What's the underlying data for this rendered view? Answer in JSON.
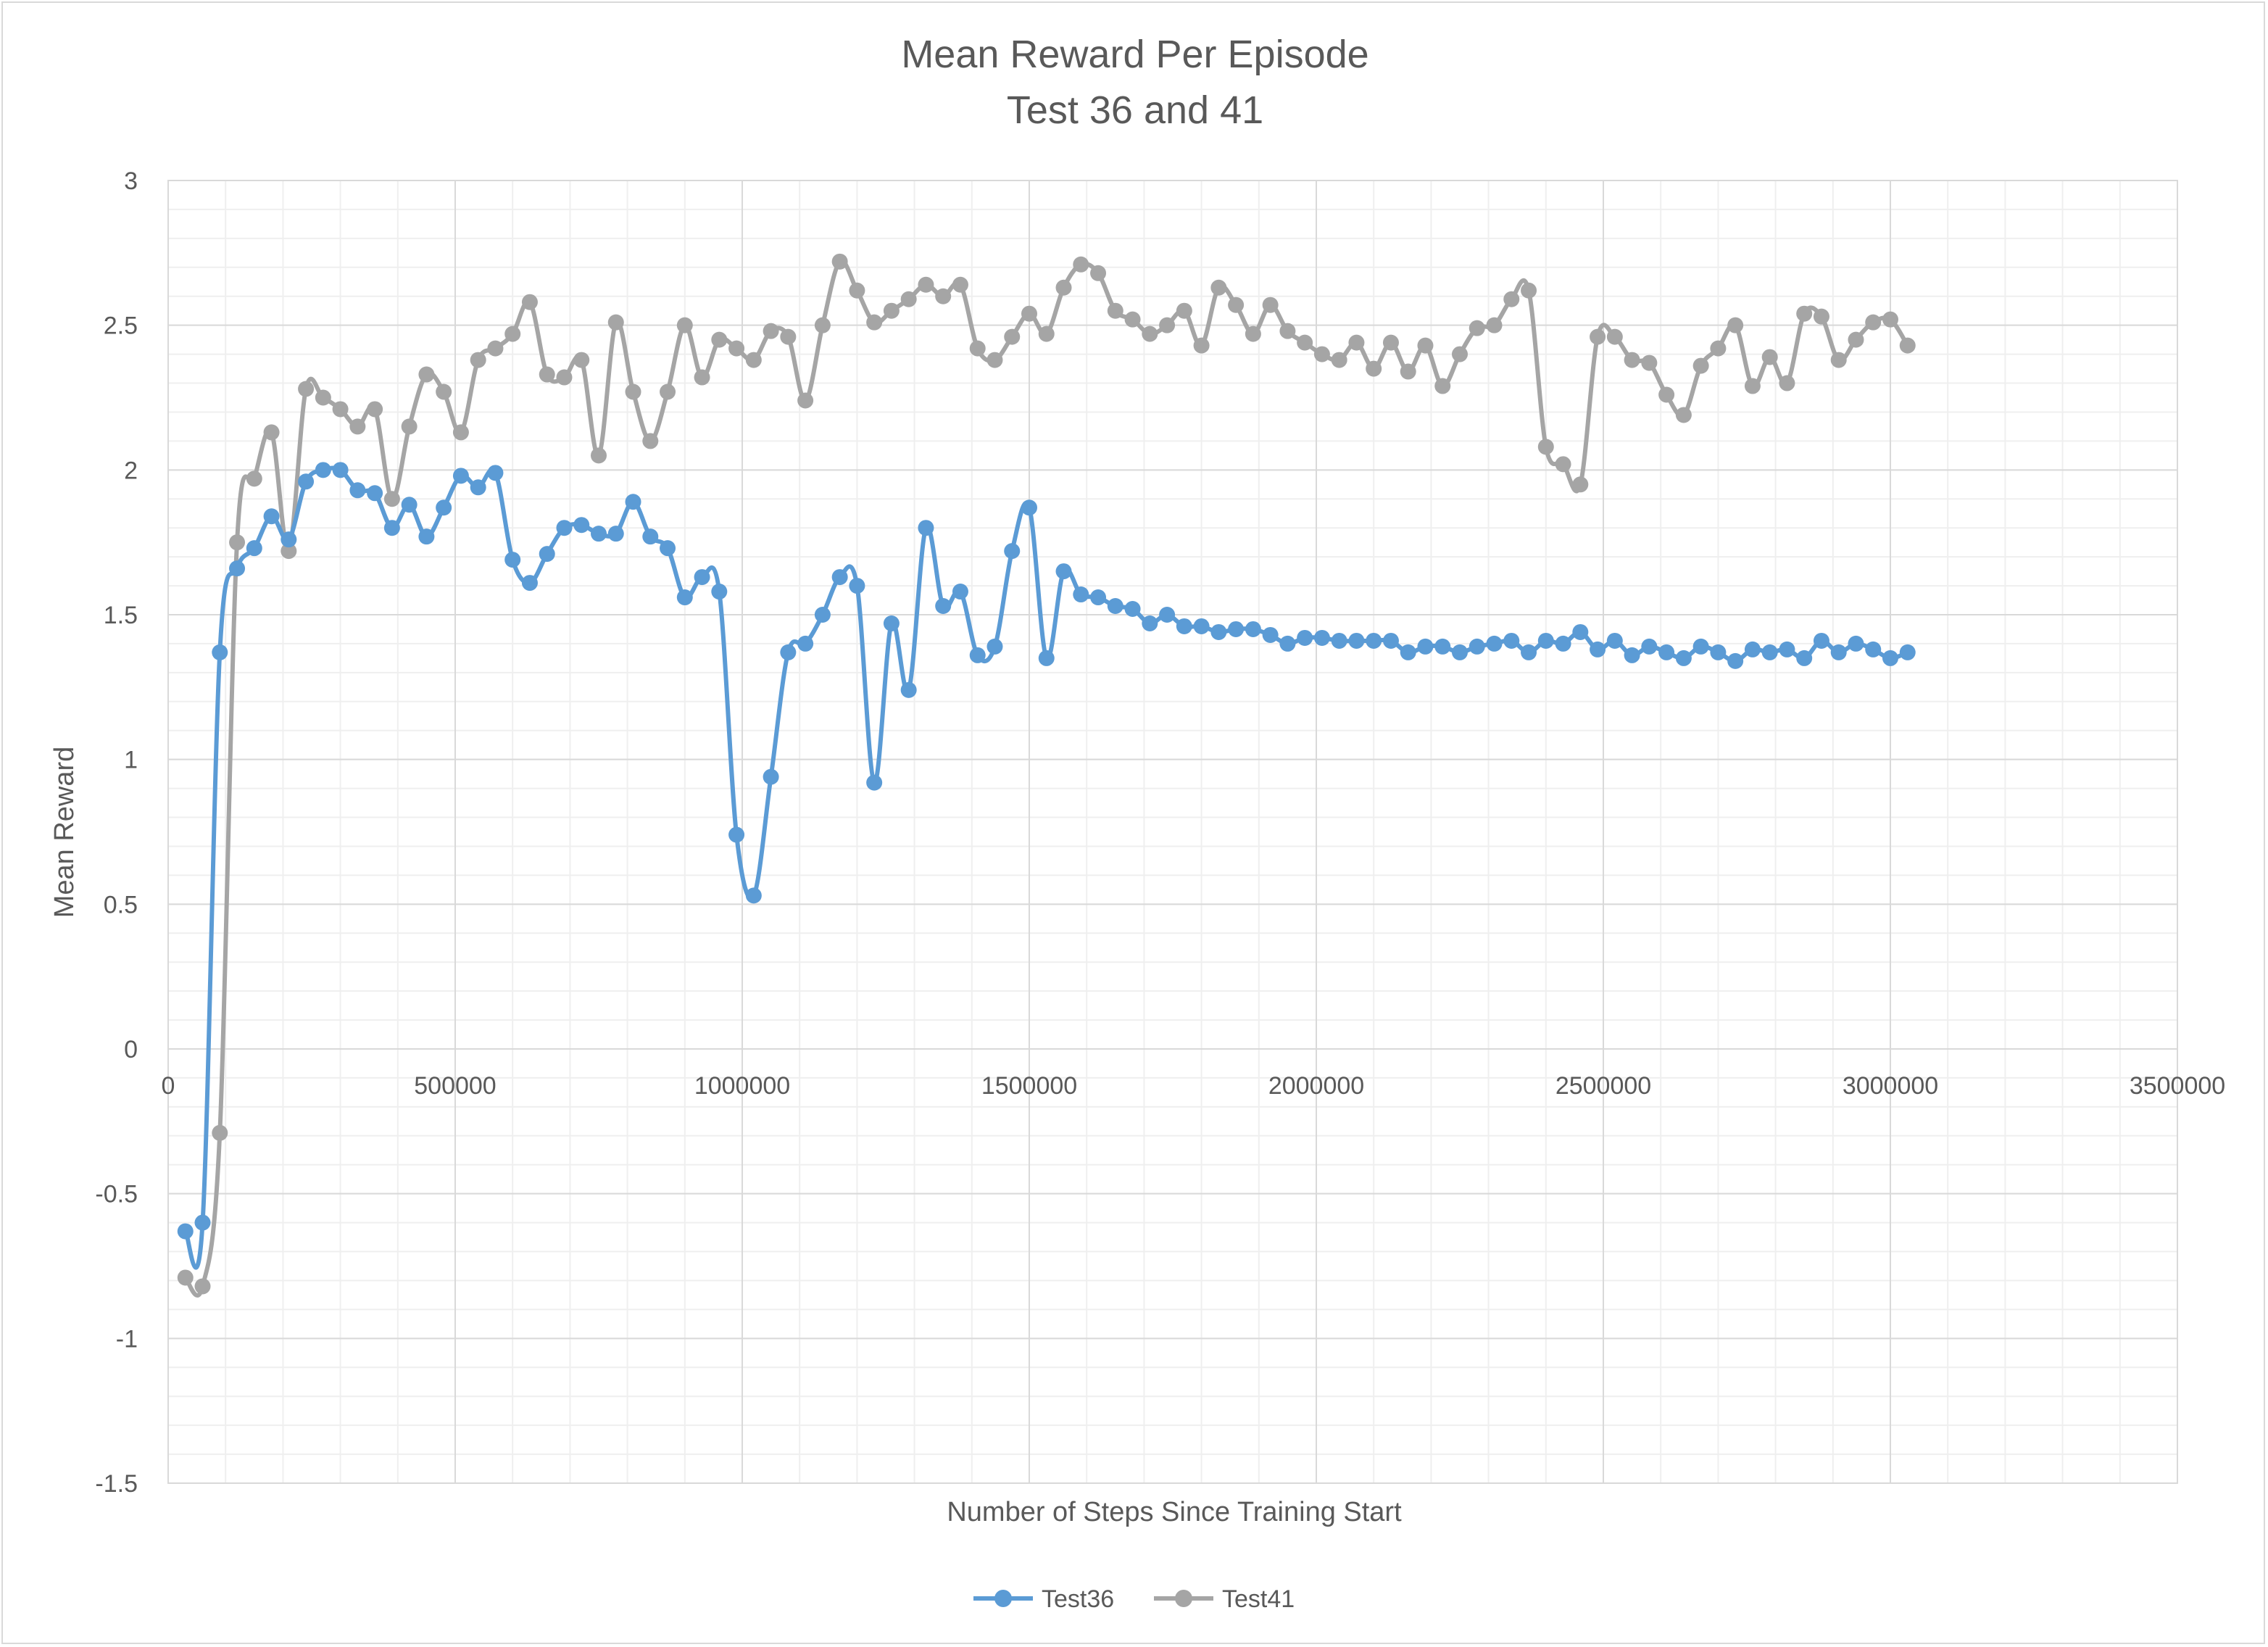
{
  "chart_data": {
    "type": "line",
    "title": "Mean Reward Per Episode",
    "subtitle": "Test 36 and 41",
    "xlabel": "Number of Steps Since Training Start",
    "ylabel": "Mean Reward",
    "xlim": [
      0,
      3500000
    ],
    "ylim": [
      -1.5,
      3
    ],
    "x_ticks": [
      0,
      500000,
      1000000,
      1500000,
      2000000,
      2500000,
      3000000,
      3500000
    ],
    "x_tick_labels": [
      "0",
      "500000",
      "1000000",
      "1500000",
      "2000000",
      "2500000",
      "3000000",
      "3500000"
    ],
    "y_ticks": [
      3,
      2.5,
      2,
      1.5,
      1,
      0.5,
      0,
      -0.5,
      -1,
      -1.5
    ],
    "y_tick_labels": [
      "3",
      "2.5",
      "2",
      "1.5",
      "1",
      "0.5",
      "0",
      "-0.5",
      "-1",
      "-1.5"
    ],
    "grid": true,
    "smooth": true,
    "legend_position": "bottom",
    "x": [
      30000,
      60000,
      90000,
      120000,
      150000,
      180000,
      210000,
      240000,
      270000,
      300000,
      330000,
      360000,
      390000,
      420000,
      450000,
      480000,
      510000,
      540000,
      570000,
      600000,
      630000,
      660000,
      690000,
      720000,
      750000,
      780000,
      810000,
      840000,
      870000,
      900000,
      930000,
      960000,
      990000,
      1020000,
      1050000,
      1080000,
      1110000,
      1140000,
      1170000,
      1200000,
      1230000,
      1260000,
      1290000,
      1320000,
      1350000,
      1380000,
      1410000,
      1440000,
      1470000,
      1500000,
      1530000,
      1560000,
      1590000,
      1620000,
      1650000,
      1680000,
      1710000,
      1740000,
      1770000,
      1800000,
      1830000,
      1860000,
      1890000,
      1920000,
      1950000,
      1980000,
      2010000,
      2040000,
      2070000,
      2100000,
      2130000,
      2160000,
      2190000,
      2220000,
      2250000,
      2280000,
      2310000,
      2340000,
      2370000,
      2400000,
      2430000,
      2460000,
      2490000,
      2520000,
      2550000,
      2580000,
      2610000,
      2640000,
      2670000,
      2700000,
      2730000,
      2760000,
      2790000,
      2820000,
      2850000,
      2880000,
      2910000,
      2940000,
      2970000,
      3000000,
      3030000
    ],
    "series": [
      {
        "name": "Test36",
        "color": "#5b9bd5",
        "values": [
          -0.63,
          -0.6,
          1.37,
          1.66,
          1.73,
          1.84,
          1.76,
          1.96,
          2.0,
          2.0,
          1.93,
          1.92,
          1.8,
          1.88,
          1.77,
          1.87,
          1.98,
          1.94,
          1.99,
          1.69,
          1.61,
          1.71,
          1.8,
          1.81,
          1.78,
          1.78,
          1.89,
          1.77,
          1.73,
          1.56,
          1.63,
          1.58,
          0.74,
          0.53,
          0.94,
          1.37,
          1.4,
          1.5,
          1.63,
          1.6,
          0.92,
          1.47,
          1.24,
          1.8,
          1.53,
          1.58,
          1.36,
          1.39,
          1.72,
          1.87,
          1.35,
          1.65,
          1.57,
          1.56,
          1.53,
          1.52,
          1.47,
          1.5,
          1.46,
          1.46,
          1.44,
          1.45,
          1.45,
          1.43,
          1.4,
          1.42,
          1.42,
          1.41,
          1.41,
          1.41,
          1.41,
          1.37,
          1.39,
          1.39,
          1.37,
          1.39,
          1.4,
          1.41,
          1.37,
          1.41,
          1.4,
          1.44,
          1.38,
          1.41,
          1.36,
          1.39,
          1.37,
          1.35,
          1.39,
          1.37,
          1.34,
          1.38,
          1.37,
          1.38,
          1.35,
          1.41,
          1.37,
          1.4,
          1.38,
          1.35,
          1.37
        ]
      },
      {
        "name": "Test41",
        "color": "#a5a5a5",
        "values": [
          -0.79,
          -0.82,
          -0.29,
          1.75,
          1.97,
          2.13,
          1.72,
          2.28,
          2.25,
          2.21,
          2.15,
          2.21,
          1.9,
          2.15,
          2.33,
          2.27,
          2.13,
          2.38,
          2.42,
          2.47,
          2.58,
          2.33,
          2.32,
          2.38,
          2.05,
          2.51,
          2.27,
          2.1,
          2.27,
          2.5,
          2.32,
          2.45,
          2.42,
          2.38,
          2.48,
          2.46,
          2.24,
          2.5,
          2.72,
          2.62,
          2.51,
          2.55,
          2.59,
          2.64,
          2.6,
          2.64,
          2.42,
          2.38,
          2.46,
          2.54,
          2.47,
          2.63,
          2.71,
          2.68,
          2.55,
          2.52,
          2.47,
          2.5,
          2.55,
          2.43,
          2.63,
          2.57,
          2.47,
          2.57,
          2.48,
          2.44,
          2.4,
          2.38,
          2.44,
          2.35,
          2.44,
          2.34,
          2.43,
          2.29,
          2.4,
          2.49,
          2.5,
          2.59,
          2.62,
          2.08,
          2.02,
          1.95,
          2.46,
          2.46,
          2.38,
          2.37,
          2.26,
          2.19,
          2.36,
          2.42,
          2.5,
          2.29,
          2.39,
          2.3,
          2.54,
          2.53,
          2.38,
          2.45,
          2.51,
          2.52,
          2.43
        ]
      }
    ]
  }
}
